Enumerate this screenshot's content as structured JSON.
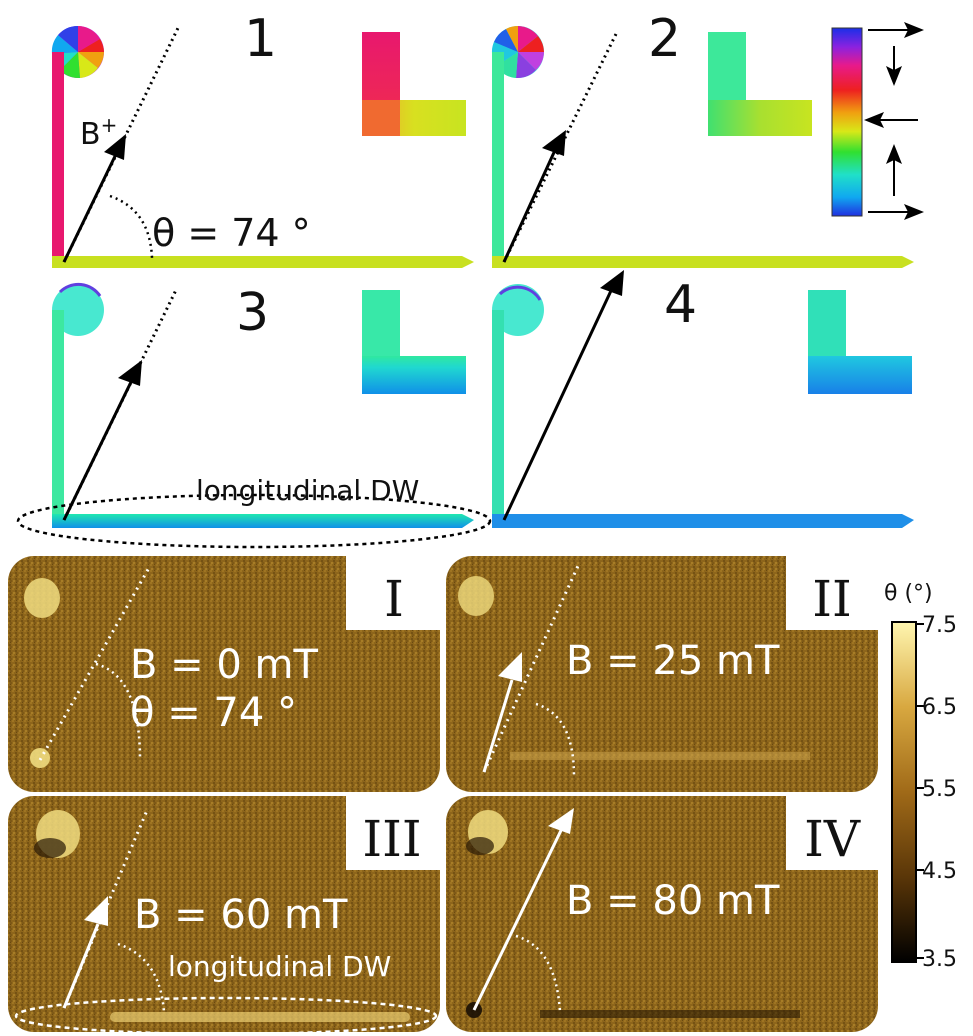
{
  "simulation": {
    "panels": [
      {
        "label": "1",
        "wire_color": "#c8e020",
        "vertical_color": "#e8186e"
      },
      {
        "label": "2",
        "wire_color": "#c8e020",
        "vertical_color": "#3de89a"
      },
      {
        "label": "3",
        "wire_color": "#2fe0c0",
        "vertical_color": "#3de8a0"
      },
      {
        "label": "4",
        "wire_color": "#1f8fe8",
        "vertical_color": "#34e0b0"
      }
    ],
    "field_label": "B",
    "field_sup": "+",
    "angle_label": "θ = 74 °",
    "dw_label": "longitudinal DW"
  },
  "experiment": {
    "panels": [
      {
        "label": "I",
        "field": "B = 0 mT",
        "angle": "θ = 74 °"
      },
      {
        "label": "II",
        "field": "B = 25 mT"
      },
      {
        "label": "III",
        "field": "B = 60 mT",
        "dw": "longitudinal DW"
      },
      {
        "label": "IV",
        "field": "B = 80 mT"
      }
    ],
    "colorbar": {
      "title": "θ (°)",
      "ticks": [
        "7.5",
        "6.5",
        "5.5",
        "4.5",
        "3.5"
      ]
    }
  },
  "colors": {
    "xmcd_base": "#8a6218",
    "xmcd_bright": "#f2e08a",
    "xmcd_dark": "#2a1a05"
  }
}
